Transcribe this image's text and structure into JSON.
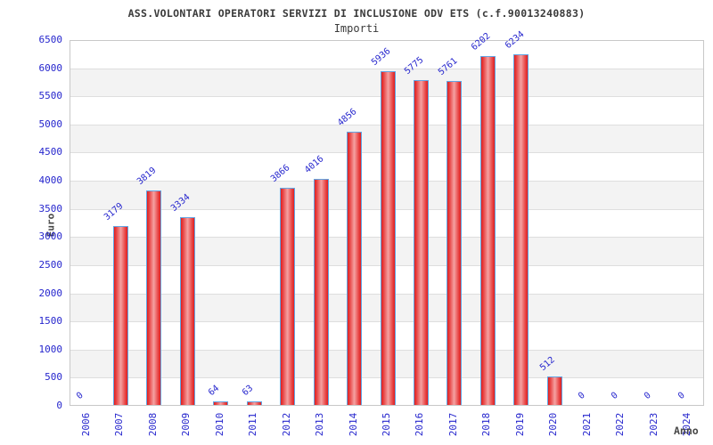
{
  "chart_data": {
    "type": "bar",
    "title": "ASS.VOLONTARI OPERATORI SERVIZI DI INCLUSIONE ODV ETS (c.f.90013240883)",
    "subtitle": "Importi",
    "xlabel": "Anno",
    "ylabel": "Euro",
    "categories": [
      "2006",
      "2007",
      "2008",
      "2009",
      "2010",
      "2011",
      "2012",
      "2013",
      "2014",
      "2015",
      "2016",
      "2017",
      "2018",
      "2019",
      "2020",
      "2021",
      "2022",
      "2023",
      "2024"
    ],
    "values": [
      0,
      3179,
      3819,
      3334,
      64,
      63,
      3866,
      4016,
      4856,
      5936,
      5775,
      5761,
      6202,
      6234,
      512,
      0,
      0,
      0,
      0
    ],
    "ylim": [
      0,
      6500
    ],
    "ytick_step": 500,
    "grid": "horizontal-bands-alternating",
    "legend": "none",
    "colors": {
      "bar_fill_edge": "#e01f1f",
      "bar_fill_center": "#f5a2a2",
      "bar_border": "#62a5e3",
      "tick_label": "#2525cd",
      "value_label": "#2525cd",
      "band_stripe": "#f3f3f3",
      "grid_line": "#dedede",
      "plot_border": "#c8c8c8",
      "title_text": "#3a3a3a",
      "axis_title_text": "#474747",
      "background": "#ffffff"
    }
  }
}
